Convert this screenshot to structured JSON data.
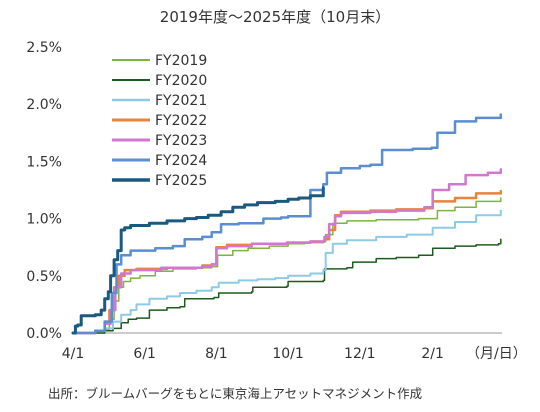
{
  "chart_data": {
    "type": "line",
    "title": "2019年度～2025年度（10月末）",
    "xlabel_unit": "（月/日）",
    "source": "出所：ブルームバーグをもとに東京海上アセットマネジメント作成",
    "x_ticks": [
      "4/1",
      "6/1",
      "8/1",
      "10/1",
      "12/1",
      "2/1"
    ],
    "x_tick_dates": [
      "04-01",
      "06-01",
      "08-01",
      "10-01",
      "12-01",
      "02-01"
    ],
    "y_ticks": [
      "0.0%",
      "0.5%",
      "1.0%",
      "1.5%",
      "2.0%",
      "2.5%"
    ],
    "y_tick_values": [
      0.0,
      0.5,
      1.0,
      1.5,
      2.0,
      2.5
    ],
    "ylim": [
      0.0,
      2.5
    ],
    "xlim": [
      "04-01",
      "03-31"
    ],
    "legend_position": "top-left",
    "grid": false,
    "series": [
      {
        "name": "FY2019",
        "color": "#7cb342",
        "width": 1.5,
        "points": [
          [
            "04-01",
            0.0
          ],
          [
            "04-20",
            0.0
          ],
          [
            "04-28",
            0.03
          ],
          [
            "05-02",
            0.12
          ],
          [
            "05-06",
            0.28
          ],
          [
            "05-10",
            0.4
          ],
          [
            "05-14",
            0.45
          ],
          [
            "05-20",
            0.48
          ],
          [
            "05-28",
            0.5
          ],
          [
            "06-10",
            0.54
          ],
          [
            "06-25",
            0.56
          ],
          [
            "07-15",
            0.57
          ],
          [
            "07-28",
            0.58
          ],
          [
            "08-02",
            0.68
          ],
          [
            "08-15",
            0.72
          ],
          [
            "08-28",
            0.74
          ],
          [
            "09-15",
            0.76
          ],
          [
            "10-01",
            0.78
          ],
          [
            "10-15",
            0.79
          ],
          [
            "10-31",
            0.8
          ],
          [
            "11-02",
            0.86
          ],
          [
            "11-08",
            0.96
          ],
          [
            "11-20",
            0.98
          ],
          [
            "12-15",
            0.99
          ],
          [
            "01-20",
            1.0
          ],
          [
            "02-05",
            1.07
          ],
          [
            "02-20",
            1.1
          ],
          [
            "03-10",
            1.15
          ],
          [
            "03-31",
            1.18
          ]
        ]
      },
      {
        "name": "FY2020",
        "color": "#1e5a1e",
        "width": 1.5,
        "points": [
          [
            "04-01",
            0.0
          ],
          [
            "04-20",
            0.0
          ],
          [
            "04-28",
            0.02
          ],
          [
            "05-05",
            0.04
          ],
          [
            "05-12",
            0.09
          ],
          [
            "05-18",
            0.12
          ],
          [
            "05-25",
            0.13
          ],
          [
            "06-05",
            0.2
          ],
          [
            "06-20",
            0.22
          ],
          [
            "07-01",
            0.23
          ],
          [
            "07-05",
            0.3
          ],
          [
            "07-30",
            0.31
          ],
          [
            "08-03",
            0.35
          ],
          [
            "08-31",
            0.36
          ],
          [
            "09-01",
            0.4
          ],
          [
            "09-30",
            0.41
          ],
          [
            "10-01",
            0.45
          ],
          [
            "10-31",
            0.46
          ],
          [
            "11-01",
            0.56
          ],
          [
            "11-20",
            0.57
          ],
          [
            "11-25",
            0.62
          ],
          [
            "12-15",
            0.65
          ],
          [
            "01-01",
            0.66
          ],
          [
            "01-20",
            0.68
          ],
          [
            "02-01",
            0.74
          ],
          [
            "02-20",
            0.76
          ],
          [
            "03-10",
            0.77
          ],
          [
            "03-29",
            0.78
          ],
          [
            "03-31",
            0.82
          ]
        ]
      },
      {
        "name": "FY2021",
        "color": "#8ecae6",
        "width": 2,
        "points": [
          [
            "04-01",
            0.0
          ],
          [
            "04-20",
            0.02
          ],
          [
            "04-28",
            0.04
          ],
          [
            "05-05",
            0.1
          ],
          [
            "05-12",
            0.16
          ],
          [
            "05-20",
            0.2
          ],
          [
            "05-25",
            0.25
          ],
          [
            "06-05",
            0.3
          ],
          [
            "06-20",
            0.32
          ],
          [
            "07-01",
            0.35
          ],
          [
            "07-15",
            0.37
          ],
          [
            "07-28",
            0.4
          ],
          [
            "08-03",
            0.44
          ],
          [
            "08-20",
            0.46
          ],
          [
            "09-05",
            0.47
          ],
          [
            "09-20",
            0.48
          ],
          [
            "10-01",
            0.5
          ],
          [
            "10-20",
            0.52
          ],
          [
            "10-31",
            0.55
          ],
          [
            "11-02",
            0.7
          ],
          [
            "11-08",
            0.78
          ],
          [
            "11-20",
            0.81
          ],
          [
            "12-15",
            0.84
          ],
          [
            "01-10",
            0.86
          ],
          [
            "02-01",
            0.92
          ],
          [
            "02-20",
            0.97
          ],
          [
            "03-10",
            1.03
          ],
          [
            "03-31",
            1.07
          ]
        ]
      },
      {
        "name": "FY2022",
        "color": "#e8833a",
        "width": 2.5,
        "points": [
          [
            "04-01",
            0.0
          ],
          [
            "04-20",
            0.02
          ],
          [
            "04-28",
            0.1
          ],
          [
            "05-02",
            0.2
          ],
          [
            "05-06",
            0.4
          ],
          [
            "05-10",
            0.5
          ],
          [
            "05-15",
            0.55
          ],
          [
            "05-25",
            0.56
          ],
          [
            "06-20",
            0.57
          ],
          [
            "07-20",
            0.59
          ],
          [
            "07-28",
            0.6
          ],
          [
            "08-01",
            0.75
          ],
          [
            "08-10",
            0.77
          ],
          [
            "08-31",
            0.78
          ],
          [
            "09-30",
            0.79
          ],
          [
            "10-20",
            0.8
          ],
          [
            "11-01",
            0.82
          ],
          [
            "11-05",
            0.9
          ],
          [
            "11-10",
            1.03
          ],
          [
            "11-15",
            1.06
          ],
          [
            "12-10",
            1.07
          ],
          [
            "01-01",
            1.08
          ],
          [
            "01-25",
            1.09
          ],
          [
            "02-01",
            1.15
          ],
          [
            "02-20",
            1.18
          ],
          [
            "03-10",
            1.22
          ],
          [
            "03-31",
            1.24
          ]
        ]
      },
      {
        "name": "FY2023",
        "color": "#d277d0",
        "width": 2.5,
        "points": [
          [
            "04-01",
            0.0
          ],
          [
            "04-20",
            0.02
          ],
          [
            "04-28",
            0.08
          ],
          [
            "05-03",
            0.2
          ],
          [
            "05-07",
            0.4
          ],
          [
            "05-12",
            0.52
          ],
          [
            "05-20",
            0.55
          ],
          [
            "06-15",
            0.57
          ],
          [
            "07-20",
            0.58
          ],
          [
            "07-28",
            0.6
          ],
          [
            "08-01",
            0.74
          ],
          [
            "08-10",
            0.76
          ],
          [
            "08-31",
            0.78
          ],
          [
            "09-30",
            0.79
          ],
          [
            "10-20",
            0.8
          ],
          [
            "11-01",
            0.84
          ],
          [
            "11-05",
            0.95
          ],
          [
            "11-10",
            1.02
          ],
          [
            "11-15",
            1.05
          ],
          [
            "12-10",
            1.06
          ],
          [
            "01-01",
            1.07
          ],
          [
            "01-25",
            1.1
          ],
          [
            "02-01",
            1.25
          ],
          [
            "02-15",
            1.3
          ],
          [
            "03-01",
            1.38
          ],
          [
            "03-20",
            1.4
          ],
          [
            "03-31",
            1.43
          ]
        ]
      },
      {
        "name": "FY2024",
        "color": "#5b8ed1",
        "width": 2.5,
        "points": [
          [
            "04-01",
            0.0
          ],
          [
            "04-20",
            0.02
          ],
          [
            "04-28",
            0.1
          ],
          [
            "05-04",
            0.35
          ],
          [
            "05-08",
            0.6
          ],
          [
            "05-12",
            0.68
          ],
          [
            "05-20",
            0.72
          ],
          [
            "06-10",
            0.74
          ],
          [
            "06-25",
            0.76
          ],
          [
            "07-05",
            0.82
          ],
          [
            "07-20",
            0.84
          ],
          [
            "07-28",
            0.88
          ],
          [
            "08-05",
            0.95
          ],
          [
            "08-20",
            0.96
          ],
          [
            "09-10",
            1.0
          ],
          [
            "09-25",
            1.01
          ],
          [
            "10-01",
            1.02
          ],
          [
            "10-20",
            1.25
          ],
          [
            "10-31",
            1.3
          ],
          [
            "11-03",
            1.4
          ],
          [
            "11-15",
            1.44
          ],
          [
            "12-01",
            1.46
          ],
          [
            "12-10",
            1.47
          ],
          [
            "12-20",
            1.6
          ],
          [
            "01-15",
            1.61
          ],
          [
            "01-31",
            1.62
          ],
          [
            "02-05",
            1.75
          ],
          [
            "02-20",
            1.85
          ],
          [
            "03-10",
            1.88
          ],
          [
            "03-31",
            1.91
          ]
        ]
      },
      {
        "name": "FY2025",
        "color": "#1b5a80",
        "width": 3,
        "points": [
          [
            "04-01",
            0.0
          ],
          [
            "04-03",
            0.06
          ],
          [
            "04-05",
            0.07
          ],
          [
            "04-08",
            0.15
          ],
          [
            "04-20",
            0.16
          ],
          [
            "04-25",
            0.2
          ],
          [
            "04-28",
            0.3
          ],
          [
            "05-01",
            0.36
          ],
          [
            "05-03",
            0.5
          ],
          [
            "05-06",
            0.64
          ],
          [
            "05-09",
            0.72
          ],
          [
            "05-12",
            0.9
          ],
          [
            "05-15",
            0.92
          ],
          [
            "05-20",
            0.94
          ],
          [
            "06-05",
            0.96
          ],
          [
            "06-20",
            0.98
          ],
          [
            "07-05",
            1.0
          ],
          [
            "07-15",
            1.01
          ],
          [
            "07-25",
            1.03
          ],
          [
            "08-05",
            1.06
          ],
          [
            "08-15",
            1.1
          ],
          [
            "08-25",
            1.12
          ],
          [
            "09-05",
            1.14
          ],
          [
            "09-20",
            1.15
          ],
          [
            "10-01",
            1.17
          ],
          [
            "10-10",
            1.18
          ],
          [
            "10-20",
            1.2
          ],
          [
            "10-31",
            1.27
          ]
        ]
      }
    ]
  }
}
